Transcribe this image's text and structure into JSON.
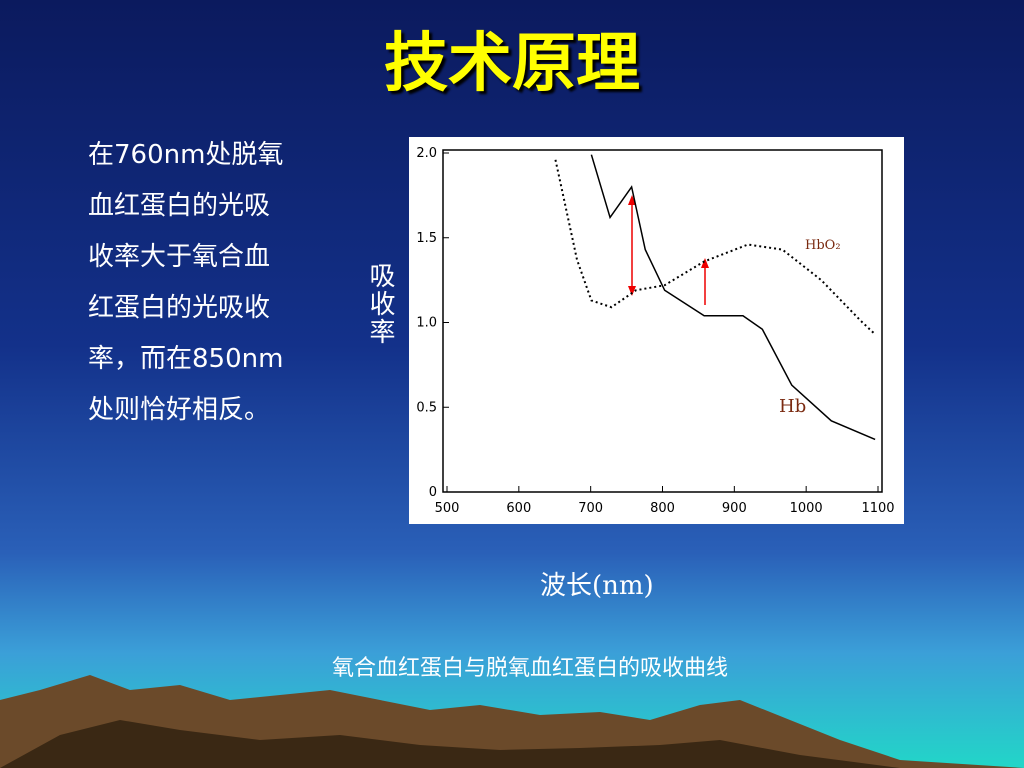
{
  "title": "技术原理",
  "body_lines": [
    "在760nm处脱氧",
    "血红蛋白的光吸",
    "收率大于氧合血",
    "红蛋白的光吸收",
    "率，而在850nm",
    "处则恰好相反。"
  ],
  "caption": "氧合血红蛋白与脱氧血红蛋白的吸收曲线",
  "chart_data": {
    "type": "line",
    "x_label": "波长(nm)",
    "y_label": "吸收率",
    "xlim": [
      500,
      1100
    ],
    "xticks": [
      500,
      600,
      700,
      800,
      900,
      1000,
      1100
    ],
    "ylim": [
      0,
      2.0
    ],
    "yticks": [
      0,
      0.5,
      {
        "value": 1.0,
        "label": "1.0"
      },
      1.5,
      {
        "value": 2.0,
        "label": "2.0"
      }
    ],
    "series": [
      {
        "name": "Hb",
        "color": "#000000",
        "dash": false,
        "x": [
          701,
          727,
          757,
          776,
          803,
          858,
          912,
          939,
          980,
          1035,
          1096
        ],
        "values": [
          1.99,
          1.62,
          1.8,
          1.43,
          1.19,
          1.04,
          1.04,
          0.96,
          0.63,
          0.42,
          0.31
        ]
      },
      {
        "name": "HbO₂",
        "color": "#000000",
        "dash": true,
        "x": [
          651,
          681,
          701,
          729,
          763,
          803,
          858,
          919,
          967,
          1021,
          1076,
          1096
        ],
        "values": [
          1.96,
          1.37,
          1.13,
          1.09,
          1.19,
          1.22,
          1.36,
          1.46,
          1.43,
          1.25,
          1.01,
          0.93
        ]
      }
    ]
  }
}
